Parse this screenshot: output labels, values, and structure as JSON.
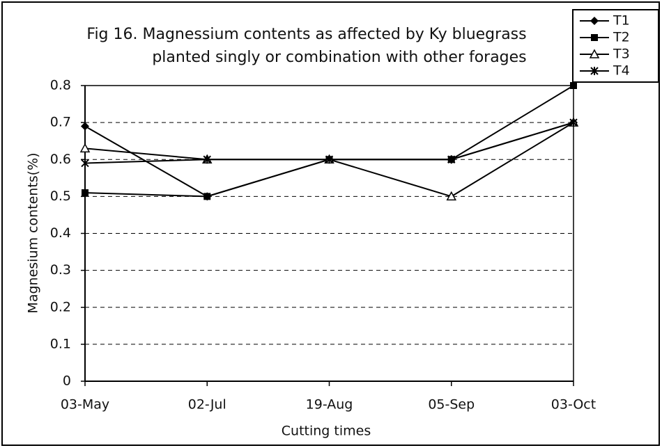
{
  "chart_data": {
    "type": "line",
    "title": [
      "Fig 16. Magnessium contents as affected by  Ky bluegrass",
      "planted singly or combination with other forages"
    ],
    "x_label": "Cutting times",
    "y_label": "Magnesium contents(%)",
    "categories": [
      "03-May",
      "02-Jul",
      "19-Aug",
      "05-Sep",
      "03-Oct"
    ],
    "series": [
      {
        "name": "T1",
        "color": "#000000",
        "marker": "diamond",
        "values": [
          0.69,
          0.5,
          0.6,
          0.6,
          0.7
        ]
      },
      {
        "name": "T2",
        "color": "#000000",
        "marker": "square",
        "values": [
          0.51,
          0.5,
          0.6,
          0.6,
          0.8
        ]
      },
      {
        "name": "T3",
        "color": "#000000",
        "marker": "triangle",
        "values": [
          0.63,
          0.6,
          0.6,
          0.5,
          0.7
        ]
      },
      {
        "name": "T4",
        "color": "#000000",
        "marker": "star",
        "values": [
          0.59,
          0.6,
          0.6,
          0.6,
          0.7
        ]
      }
    ],
    "ylim": [
      0,
      0.8
    ],
    "yticks": [
      0,
      0.1,
      0.2,
      0.3,
      0.4,
      0.5,
      0.6,
      0.7,
      0.8
    ],
    "grid": true,
    "legend": "top-right"
  }
}
